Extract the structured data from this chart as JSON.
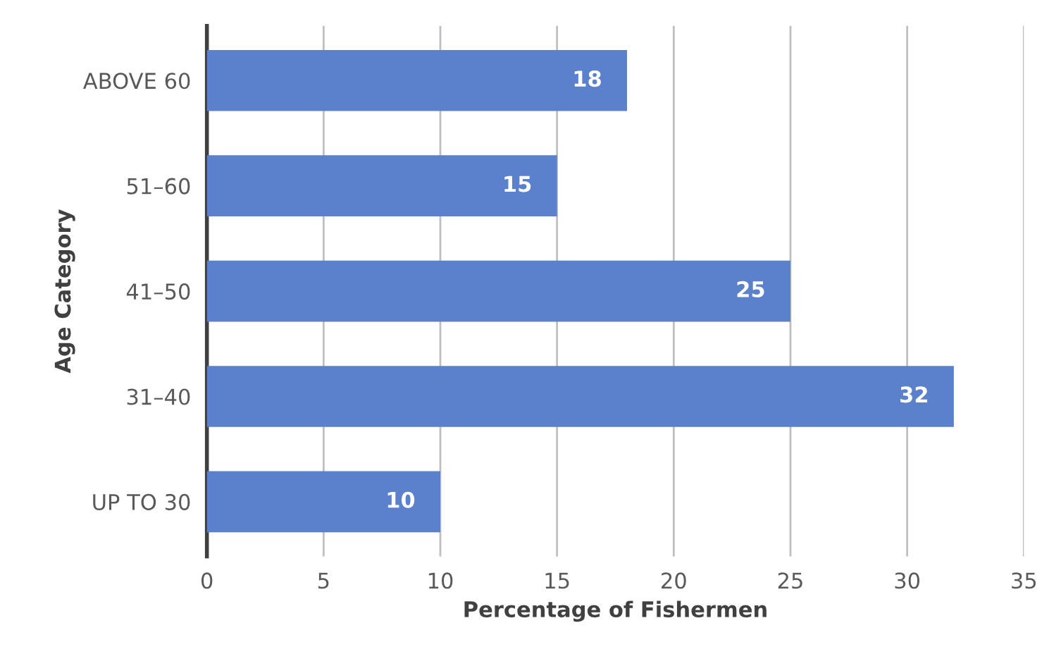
{
  "chart_data": {
    "type": "bar",
    "orientation": "horizontal",
    "xlabel": "Percentage of Fishermen",
    "ylabel": "Age Category",
    "categories": [
      "ABOVE 60",
      "51–60",
      "41–50",
      "31–40",
      "UP TO 30"
    ],
    "values": [
      18,
      15,
      25,
      32,
      10
    ],
    "color": "#5b80cc",
    "xlim": [
      0,
      35
    ],
    "xticks": [
      0,
      5,
      10,
      15,
      20,
      25,
      30,
      35
    ],
    "grid": "x",
    "data_labels": true
  }
}
